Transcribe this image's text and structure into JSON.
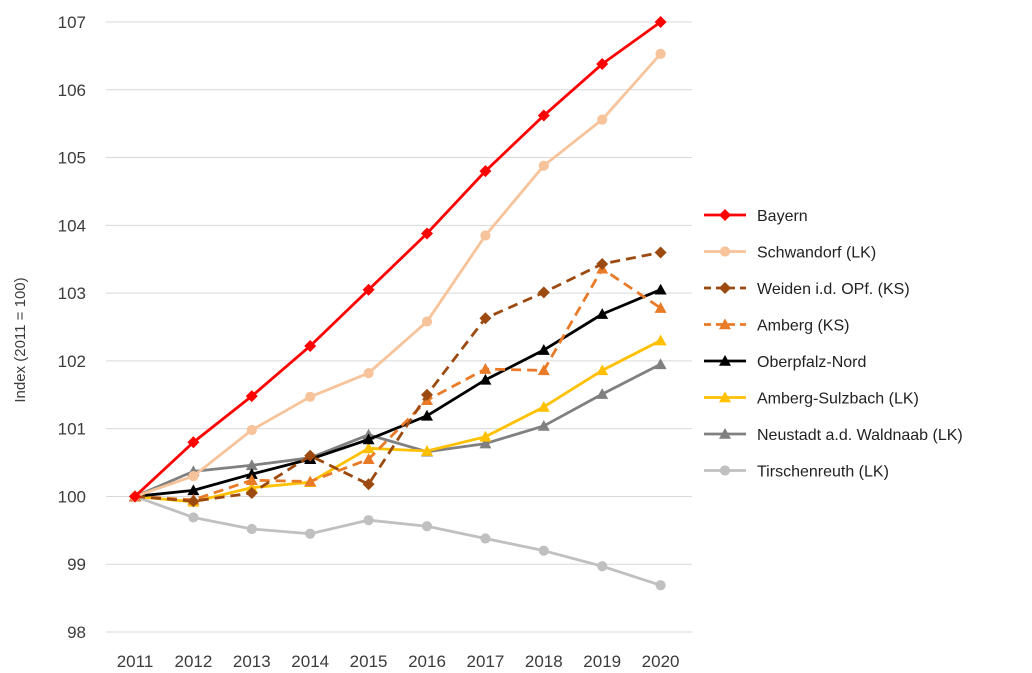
{
  "chart_data": {
    "type": "line",
    "title": "",
    "xlabel": "",
    "ylabel": "Index (2011 = 100)",
    "ylim": [
      98,
      107
    ],
    "yticks": [
      "98",
      "99",
      "100",
      "101",
      "102",
      "103",
      "104",
      "105",
      "106",
      "107"
    ],
    "categories": [
      "2011",
      "2012",
      "2013",
      "2014",
      "2015",
      "2016",
      "2017",
      "2018",
      "2019",
      "2020"
    ],
    "grid": true,
    "legend_position": "right",
    "series": [
      {
        "name": "Bayern",
        "color": "#ff0000",
        "dash": "solid",
        "marker": "diamond",
        "values": [
          100,
          100.8,
          101.48,
          102.22,
          103.05,
          103.88,
          104.8,
          105.62,
          106.38,
          107.0
        ]
      },
      {
        "name": "Schwandorf  (LK)",
        "color": "#f7c39a",
        "dash": "solid",
        "marker": "circle",
        "values": [
          100,
          100.3,
          100.98,
          101.47,
          101.82,
          102.58,
          103.85,
          104.88,
          105.56,
          106.53
        ]
      },
      {
        "name": "Weiden i.d. OPf. (KS)",
        "color": "#9c4a10",
        "dash": "dashed",
        "marker": "diamond",
        "values": [
          100,
          99.93,
          100.05,
          100.6,
          100.18,
          101.5,
          102.63,
          103.01,
          103.43,
          103.6
        ]
      },
      {
        "name": "Amberg (KS)",
        "color": "#e97a27",
        "dash": "dashed",
        "marker": "triangle",
        "values": [
          100,
          99.95,
          100.24,
          100.22,
          100.55,
          101.42,
          101.88,
          101.86,
          103.36,
          102.78
        ]
      },
      {
        "name": "Oberpfalz-Nord",
        "color": "#000000",
        "dash": "solid",
        "marker": "triangle",
        "values": [
          100,
          100.09,
          100.33,
          100.55,
          100.84,
          101.19,
          101.72,
          102.16,
          102.69,
          103.05
        ]
      },
      {
        "name": "Amberg-Sulzbach (LK)",
        "color": "#ffc000",
        "dash": "solid",
        "marker": "triangle",
        "values": [
          100,
          99.92,
          100.13,
          100.21,
          100.71,
          100.67,
          100.88,
          101.32,
          101.86,
          102.3
        ]
      },
      {
        "name": "Neustadt a.d. Waldnaab  (LK)",
        "color": "#808080",
        "dash": "solid",
        "marker": "triangle",
        "values": [
          100,
          100.37,
          100.46,
          100.57,
          100.91,
          100.66,
          100.78,
          101.04,
          101.51,
          101.95
        ]
      },
      {
        "name": "Tirschenreuth  (LK)",
        "color": "#c0c0c0",
        "dash": "solid",
        "marker": "circle",
        "values": [
          100,
          99.69,
          99.52,
          99.45,
          99.65,
          99.56,
          99.38,
          99.2,
          98.97,
          98.69
        ]
      }
    ]
  }
}
